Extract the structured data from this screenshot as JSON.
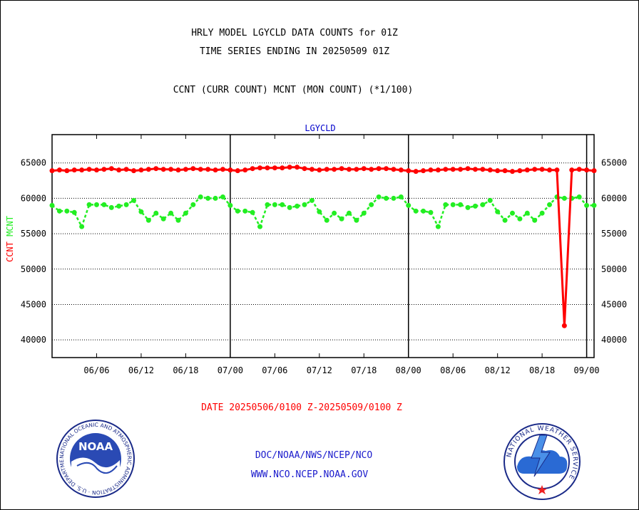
{
  "header": {
    "title_line1": "HRLY MODEL LGYCLD DATA COUNTS for 01Z",
    "title_line2": "TIME SERIES ENDING IN 20250509 01Z",
    "subtitle": "CCNT (CURR COUNT) MCNT (MON COUNT) (*1/100)"
  },
  "footer": {
    "date_range": "DATE 20250506/0100 Z-20250509/0100 Z",
    "credit_line1": "DOC/NOAA/NWS/NCEP/NCO",
    "credit_line2": "WWW.NCO.NCEP.NOAA.GOV"
  },
  "logos": {
    "left": {
      "name": "NOAA",
      "ring_text": "NATIONAL OCEANIC AND ATMOSPHERIC ADMINISTRATION · U.S. DEPARTMENT OF COMMERCE"
    },
    "right": {
      "ring_text": "NATIONAL WEATHER SERVICE"
    }
  },
  "colors": {
    "ccnt": "#ff0000",
    "mcnt": "#22ee22",
    "title": "#0000cc",
    "axis": "#000000"
  },
  "chart_data": {
    "type": "line",
    "title": "LGYCLD",
    "ylabel_parts": [
      "CCNT",
      "MCNT"
    ],
    "xlabel": "",
    "ylim": [
      37500,
      69000
    ],
    "xlim": [
      0,
      73
    ],
    "yticks": [
      40000,
      45000,
      50000,
      55000,
      60000,
      65000
    ],
    "xticks": [
      {
        "x": 6,
        "label": "06/06"
      },
      {
        "x": 12,
        "label": "06/12"
      },
      {
        "x": 18,
        "label": "06/18"
      },
      {
        "x": 24,
        "label": "07/00"
      },
      {
        "x": 30,
        "label": "07/06"
      },
      {
        "x": 36,
        "label": "07/12"
      },
      {
        "x": 42,
        "label": "07/18"
      },
      {
        "x": 48,
        "label": "08/00"
      },
      {
        "x": 54,
        "label": "08/06"
      },
      {
        "x": 60,
        "label": "08/12"
      },
      {
        "x": 66,
        "label": "08/18"
      },
      {
        "x": 72,
        "label": "09/00"
      }
    ],
    "day_lines_x": [
      24,
      48,
      72
    ],
    "grid": "horizontal dotted",
    "series": [
      {
        "name": "CCNT",
        "values": [
          63900,
          64000,
          63900,
          64000,
          64000,
          64100,
          64000,
          64100,
          64200,
          64000,
          64100,
          63900,
          64000,
          64100,
          64200,
          64100,
          64100,
          64000,
          64100,
          64200,
          64100,
          64100,
          64000,
          64100,
          64000,
          63900,
          64000,
          64200,
          64300,
          64300,
          64300,
          64300,
          64400,
          64400,
          64200,
          64100,
          64000,
          64100,
          64100,
          64200,
          64100,
          64100,
          64200,
          64100,
          64200,
          64200,
          64100,
          64000,
          63900,
          63800,
          63900,
          64000,
          64000,
          64100,
          64100,
          64100,
          64200,
          64100,
          64100,
          64000,
          63900,
          63900,
          63800,
          63900,
          64000,
          64100,
          64100,
          64000,
          64000,
          42000,
          64000,
          64100,
          64000,
          63900
        ]
      },
      {
        "name": "MCNT",
        "values": [
          59000,
          58200,
          58200,
          58000,
          56000,
          59100,
          59100,
          59100,
          58700,
          58900,
          59100,
          59700,
          58100,
          56900,
          57900,
          57100,
          57900,
          56900,
          57900,
          59100,
          60200,
          60000,
          60000,
          60200,
          59000,
          58200,
          58200,
          58000,
          56000,
          59100,
          59100,
          59100,
          58700,
          58900,
          59100,
          59700,
          58100,
          56900,
          57900,
          57100,
          57900,
          56900,
          57900,
          59100,
          60200,
          60000,
          60000,
          60200,
          59000,
          58200,
          58200,
          58000,
          56000,
          59100,
          59100,
          59100,
          58700,
          58900,
          59100,
          59700,
          58100,
          56900,
          57900,
          57100,
          57900,
          56900,
          57900,
          59100,
          60200,
          60000,
          60000,
          60200,
          59000,
          59000
        ]
      }
    ]
  }
}
